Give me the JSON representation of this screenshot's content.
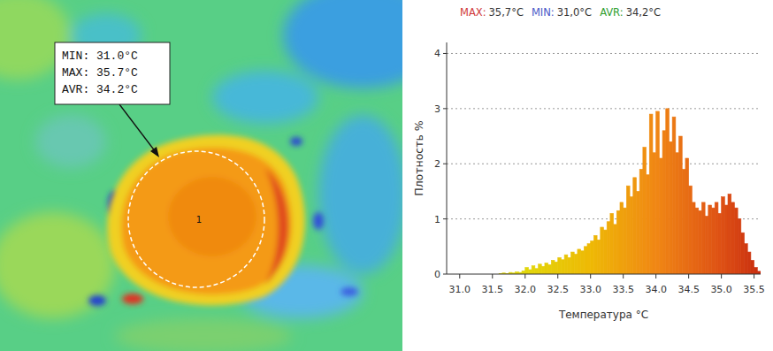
{
  "thermal_image": {
    "lines": [
      "MIN: 31.0°C",
      "MAX: 35.7°C",
      "AVR: 34.2°C"
    ],
    "marker": "1"
  },
  "chart_data": {
    "type": "histogram",
    "annotations": [
      {
        "label": "MAX:",
        "value_text": "35,7°C",
        "color": "#d03a3a"
      },
      {
        "label": "MIN:",
        "value_text": "31,0°C",
        "color": "#4a58c8"
      },
      {
        "label": "AVR:",
        "value_text": "34,2°C",
        "color": "#2e9e2e"
      }
    ],
    "x_label": "Температура °C",
    "y_label": "Плотность %",
    "bins": [
      31.6,
      31.65,
      31.7,
      31.75,
      31.8,
      31.85,
      31.9,
      31.95,
      32.0,
      32.05,
      32.1,
      32.15,
      32.2,
      32.25,
      32.3,
      32.35,
      32.4,
      32.45,
      32.5,
      32.55,
      32.6,
      32.65,
      32.7,
      32.75,
      32.8,
      32.85,
      32.9,
      32.95,
      33.0,
      33.05,
      33.1,
      33.15,
      33.2,
      33.25,
      33.3,
      33.35,
      33.4,
      33.45,
      33.5,
      33.55,
      33.6,
      33.65,
      33.7,
      33.75,
      33.8,
      33.85,
      33.9,
      33.95,
      34.0,
      34.05,
      34.1,
      34.15,
      34.2,
      34.25,
      34.3,
      34.35,
      34.4,
      34.45,
      34.5,
      34.55,
      34.6,
      34.65,
      34.7,
      34.75,
      34.8,
      34.85,
      34.9,
      34.95,
      35.0,
      35.05,
      35.1,
      35.15,
      35.2,
      35.25,
      35.3,
      35.35,
      35.4,
      35.45,
      35.5,
      35.55,
      35.6
    ],
    "values": [
      0.01,
      0.02,
      0.01,
      0.03,
      0.02,
      0.04,
      0.03,
      0.06,
      0.12,
      0.08,
      0.15,
      0.1,
      0.18,
      0.14,
      0.2,
      0.17,
      0.25,
      0.22,
      0.3,
      0.26,
      0.35,
      0.3,
      0.4,
      0.36,
      0.45,
      0.42,
      0.5,
      0.55,
      0.6,
      0.7,
      0.62,
      0.85,
      0.8,
      0.95,
      1.1,
      0.9,
      1.15,
      1.3,
      1.2,
      1.6,
      1.4,
      1.75,
      1.5,
      1.9,
      2.3,
      1.8,
      2.9,
      2.2,
      2.95,
      2.1,
      2.6,
      3.0,
      2.4,
      2.85,
      2.2,
      2.5,
      1.9,
      2.1,
      1.6,
      1.3,
      1.2,
      1.15,
      1.3,
      1.05,
      1.25,
      1.2,
      1.3,
      1.1,
      1.4,
      1.25,
      1.45,
      1.3,
      1.2,
      1.0,
      0.75,
      0.55,
      0.4,
      0.25,
      0.12,
      0.05
    ],
    "xlim": [
      30.8,
      35.6
    ],
    "ylim": [
      0,
      4.2
    ],
    "xticks": [
      {
        "value": 31,
        "label": "31.0"
      },
      31.5,
      {
        "value": 32,
        "label": "32.0"
      },
      32.5,
      {
        "value": 33,
        "label": "33.0"
      },
      33.5,
      {
        "value": 34,
        "label": "34.0"
      },
      34.5,
      {
        "value": 35,
        "label": "35.0"
      },
      35.5
    ],
    "yticks": [
      0,
      1,
      2,
      3,
      4
    ],
    "grid": true
  }
}
